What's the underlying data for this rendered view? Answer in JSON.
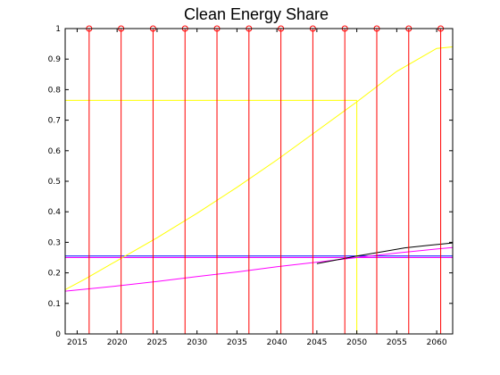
{
  "chart_data": {
    "type": "line",
    "title": "Clean Energy Share",
    "xlabel": "",
    "ylabel": "",
    "xlim": [
      2013.5,
      2062
    ],
    "ylim": [
      0,
      1
    ],
    "x_ticks": [
      2015,
      2020,
      2025,
      2030,
      2035,
      2040,
      2045,
      2050,
      2055,
      2060
    ],
    "y_ticks": [
      0,
      0.1,
      0.2,
      0.3,
      0.4,
      0.5,
      0.6,
      0.7,
      0.8,
      0.9,
      1
    ],
    "y_tick_labels": [
      "0",
      "0.1",
      "0.2",
      "0.3",
      "0.4",
      "0.5",
      "0.6",
      "0.7",
      "0.8",
      "0.9",
      "1"
    ],
    "grid": false,
    "legend": "none",
    "series": [
      {
        "color": "#ffff00",
        "x": [
          2013.5,
          2016,
          2020,
          2025,
          2030,
          2035,
          2040,
          2045,
          2050,
          2055,
          2060,
          2062
        ],
        "y": [
          0.145,
          0.18,
          0.24,
          0.315,
          0.395,
          0.48,
          0.57,
          0.665,
          0.76,
          0.86,
          0.935,
          0.94
        ]
      },
      {
        "color": "#ff00ff",
        "x": [
          2013.5,
          2020,
          2025,
          2030,
          2035,
          2040,
          2045,
          2050,
          2055,
          2060,
          2062
        ],
        "y": [
          0.14,
          0.157,
          0.172,
          0.188,
          0.203,
          0.22,
          0.235,
          0.25,
          0.265,
          0.278,
          0.283
        ]
      },
      {
        "color": "#000000",
        "x": [
          2045,
          2047,
          2050,
          2053,
          2056,
          2059,
          2062
        ],
        "y": [
          0.23,
          0.24,
          0.255,
          0.268,
          0.282,
          0.29,
          0.298
        ]
      }
    ],
    "hlines": [
      {
        "color": "#0000ff",
        "y": 0.255
      },
      {
        "color": "#ff00ff",
        "y": 0.25
      }
    ],
    "stems": {
      "color": "#ff0000",
      "x": [
        2016.5,
        2020.5,
        2024.5,
        2028.5,
        2032.5,
        2036.5,
        2040.5,
        2044.5,
        2048.5,
        2052.5,
        2056.5,
        2060.5
      ],
      "y": 1
    },
    "crosshair": {
      "color": "#ffff00",
      "x": 2050,
      "y": 0.765
    }
  }
}
